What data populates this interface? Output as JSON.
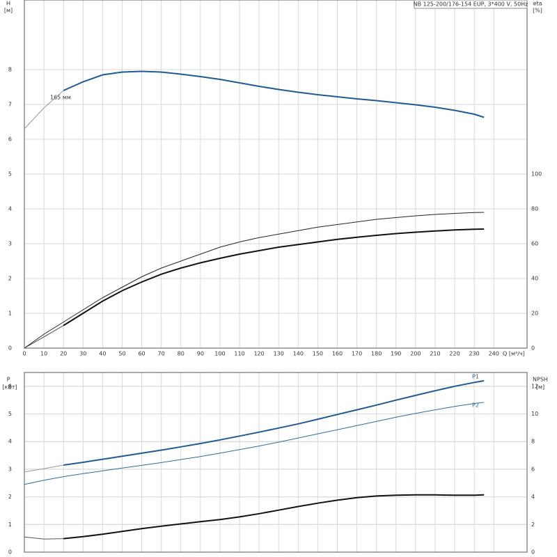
{
  "chart_data": [
    {
      "type": "line",
      "title": "NB 125-200/176-154 EUP, 3*400 V, 50Hz",
      "y_label": "H",
      "y_unit": "[м]",
      "y2_label": "eta",
      "y2_unit": "[%]",
      "x_label": "Q [м³/ч]",
      "annotations": [
        "165 мм"
      ],
      "x": [
        0,
        10,
        20,
        30,
        40,
        50,
        60,
        70,
        80,
        90,
        100,
        110,
        120,
        130,
        140,
        150,
        160,
        170,
        180,
        190,
        200,
        210,
        220,
        230,
        235
      ],
      "xlim": [
        0,
        257
      ],
      "xticks": [
        0,
        10,
        20,
        30,
        40,
        50,
        60,
        70,
        80,
        90,
        100,
        110,
        120,
        130,
        140,
        150,
        160,
        170,
        180,
        190,
        200,
        210,
        220,
        230,
        240
      ],
      "ylim": [
        0,
        10
      ],
      "yticks": [
        0,
        1,
        2,
        3,
        4,
        5,
        6,
        7,
        8
      ],
      "y2lim": [
        0,
        200
      ],
      "y2ticks": [
        0,
        20,
        40,
        60,
        80,
        100
      ],
      "grid": true,
      "series": [
        {
          "color": "#999999",
          "line_width": 1,
          "values": [
            6.3,
            6.9,
            7.4,
            null,
            null,
            null,
            null,
            null,
            null,
            null,
            null,
            null,
            null,
            null,
            null,
            null,
            null,
            null,
            null,
            null,
            null,
            null,
            null,
            null,
            null
          ]
        },
        {
          "color": "#1f5a94",
          "line_width": 2,
          "values": [
            null,
            null,
            7.4,
            7.65,
            7.85,
            7.93,
            7.95,
            7.93,
            7.87,
            7.8,
            7.72,
            7.62,
            7.52,
            7.43,
            7.35,
            7.28,
            7.22,
            7.16,
            7.11,
            7.05,
            6.99,
            6.92,
            6.83,
            6.72,
            6.63
          ]
        },
        {
          "color": "#222222",
          "line_width": 1,
          "axis": "y2",
          "values": [
            0,
            8,
            15,
            22,
            29,
            35,
            41,
            46,
            50,
            54,
            58,
            61,
            63.5,
            65.5,
            67.5,
            69.5,
            71,
            72.5,
            74,
            75,
            76,
            76.8,
            77.4,
            77.9,
            78
          ]
        },
        {
          "color": "#444444",
          "line_width": 1,
          "axis": "y2",
          "values": [
            0,
            6.5,
            13,
            null,
            null,
            null,
            null,
            null,
            null,
            null,
            null,
            null,
            null,
            null,
            null,
            null,
            null,
            null,
            null,
            null,
            null,
            null,
            null,
            null,
            null
          ]
        },
        {
          "color": "#111111",
          "line_width": 2,
          "axis": "y2",
          "values": [
            null,
            null,
            13,
            20,
            27,
            33,
            38,
            42.5,
            46,
            49,
            51.6,
            54,
            56,
            58,
            59.5,
            61,
            62.5,
            63.7,
            64.8,
            65.8,
            66.6,
            67.3,
            67.9,
            68.3,
            68.4
          ]
        }
      ]
    },
    {
      "type": "line",
      "y_label": "P",
      "y_unit": "[кВт]",
      "y2_label": "NPSH",
      "y2_unit": "[м]",
      "annotations": [
        "P1",
        "P2"
      ],
      "x": [
        0,
        10,
        20,
        30,
        40,
        50,
        60,
        70,
        80,
        90,
        100,
        110,
        120,
        130,
        140,
        150,
        160,
        170,
        180,
        190,
        200,
        210,
        220,
        230,
        235
      ],
      "xlim": [
        0,
        257
      ],
      "xgrid": [
        0,
        10,
        20,
        30,
        40,
        50,
        60,
        70,
        80,
        90,
        100,
        110,
        120,
        130,
        140,
        150,
        160,
        170,
        180,
        190,
        200,
        210,
        220,
        230,
        240
      ],
      "ylim": [
        0,
        6.5
      ],
      "yticks": [
        0,
        1,
        2,
        3,
        4,
        5,
        6
      ],
      "y2lim": [
        0,
        13
      ],
      "y2ticks": [
        0,
        2,
        4,
        6,
        8,
        10,
        12
      ],
      "grid": true,
      "series": [
        {
          "color": "#999999",
          "line_width": 1,
          "values": [
            2.9,
            3.02,
            3.15,
            null,
            null,
            null,
            null,
            null,
            null,
            null,
            null,
            null,
            null,
            null,
            null,
            null,
            null,
            null,
            null,
            null,
            null,
            null,
            null,
            null,
            null
          ]
        },
        {
          "color": "#1f5a94",
          "line_width": 2,
          "values": [
            null,
            null,
            3.15,
            3.25,
            3.36,
            3.47,
            3.58,
            3.69,
            3.81,
            3.93,
            4.06,
            4.2,
            4.34,
            4.49,
            4.64,
            4.81,
            4.98,
            5.15,
            5.32,
            5.5,
            5.67,
            5.84,
            6.0,
            6.14,
            6.2
          ]
        },
        {
          "color": "#2f6aa4",
          "line_width": 1,
          "values": [
            2.45,
            2.6,
            2.73,
            2.84,
            2.94,
            3.04,
            3.14,
            3.24,
            3.35,
            3.46,
            3.58,
            3.71,
            3.84,
            3.98,
            4.13,
            4.28,
            4.43,
            4.58,
            4.73,
            4.88,
            5.02,
            5.15,
            5.27,
            5.38,
            5.42
          ]
        },
        {
          "color": "#555555",
          "line_width": 1,
          "axis": "y2",
          "values": [
            1.1,
            0.94,
            0.98,
            null,
            null,
            null,
            null,
            null,
            null,
            null,
            null,
            null,
            null,
            null,
            null,
            null,
            null,
            null,
            null,
            null,
            null,
            null,
            null,
            null,
            null
          ]
        },
        {
          "color": "#111111",
          "line_width": 2,
          "axis": "y2",
          "values": [
            null,
            null,
            0.98,
            1.12,
            1.3,
            1.5,
            1.7,
            1.88,
            2.04,
            2.2,
            2.36,
            2.55,
            2.78,
            3.04,
            3.3,
            3.54,
            3.76,
            3.94,
            4.06,
            4.12,
            4.14,
            4.14,
            4.12,
            4.12,
            4.14
          ]
        }
      ]
    }
  ]
}
